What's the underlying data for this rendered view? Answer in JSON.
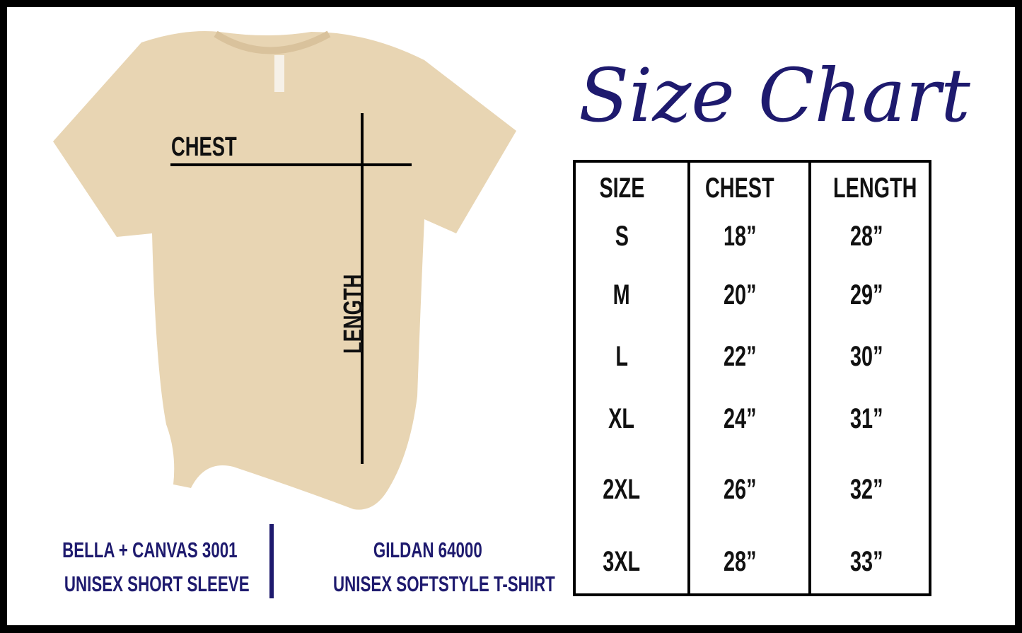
{
  "title": "Size Chart",
  "shirt_labels": {
    "chest": "CHEST",
    "length": "LENGTH"
  },
  "table": {
    "headers": [
      "SIZE",
      "CHEST",
      "LENGTH"
    ],
    "rows": [
      [
        "S",
        "18”",
        "28”"
      ],
      [
        "M",
        "20”",
        "29”"
      ],
      [
        "L",
        "22”",
        "30”"
      ],
      [
        "XL",
        "24”",
        "31”"
      ],
      [
        "2XL",
        "26”",
        "32”"
      ],
      [
        "3XL",
        "28”",
        "33”"
      ]
    ]
  },
  "brands": [
    {
      "line1": "BELLA + CANVAS 3001",
      "line2": "UNISEX SHORT SLEEVE"
    },
    {
      "line1": "GILDAN 64000",
      "line2": "UNISEX SOFTSTYLE T-SHIRT"
    }
  ],
  "colors": {
    "navy": "#1e1a6e",
    "shirt": "#e8d5b3"
  }
}
